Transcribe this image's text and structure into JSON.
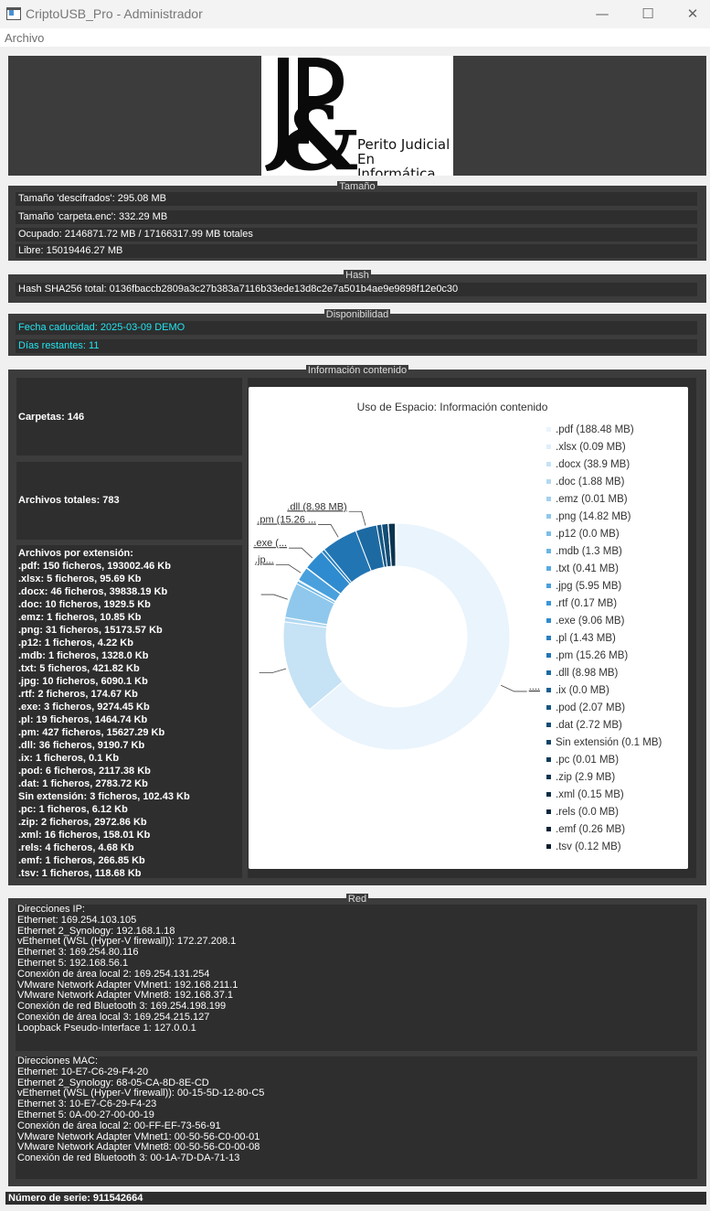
{
  "window": {
    "title": "CriptoUSB_Pro - Administrador",
    "minimize": "—",
    "maximize": "☐",
    "close": "✕"
  },
  "menu": {
    "archivo": "Archivo"
  },
  "logo": {
    "line1": "Perito Judicial",
    "line2": "En Informática"
  },
  "tamano": {
    "legend": "Tamaño",
    "descifrados": "Tamaño 'descifrados': 295.08 MB",
    "carpeta_enc": "Tamaño 'carpeta.enc': 332.29 MB",
    "ocupado": "Ocupado: 2146871.72 MB / 17166317.99 MB totales",
    "libre": "Libre: 15019446.27 MB"
  },
  "hash": {
    "legend": "Hash",
    "value": "Hash SHA256 total: 0136fbaccb2809a3c27b383a7116b33ede13d8c2e7a501b4ae9e9898f12e0c30"
  },
  "disponibilidad": {
    "legend": "Disponibilidad",
    "fecha": "Fecha caducidad: 2025-03-09 DEMO",
    "dias": "Días restantes: 11"
  },
  "info": {
    "legend": "Información contenido",
    "carpetas": "Carpetas: 146",
    "archivos": "Archivos totales: 783",
    "ext_header": "Archivos por extensión:",
    "ext_lines": [
      ".pdf: 150 ficheros, 193002.46 Kb",
      ".xlsx: 5 ficheros, 95.69 Kb",
      ".docx: 46 ficheros, 39838.19 Kb",
      ".doc: 10 ficheros, 1929.5 Kb",
      ".emz: 1 ficheros, 10.85 Kb",
      ".png: 31 ficheros, 15173.57 Kb",
      ".p12: 1 ficheros, 4.22 Kb",
      ".mdb: 1 ficheros, 1328.0 Kb",
      ".txt: 5 ficheros, 421.82 Kb",
      ".jpg: 10 ficheros, 6090.1 Kb",
      ".rtf: 2 ficheros, 174.67 Kb",
      ".exe: 3 ficheros, 9274.45 Kb",
      ".pl: 19 ficheros, 1464.74 Kb",
      ".pm: 427 ficheros, 15627.29 Kb",
      ".dll: 36 ficheros, 9190.7 Kb",
      ".ix: 1 ficheros, 0.1 Kb",
      ".pod: 6 ficheros, 2117.38 Kb",
      ".dat: 1 ficheros, 2783.72 Kb",
      "Sin extensión: 3 ficheros, 102.43 Kb",
      ".pc: 1 ficheros, 6.12 Kb",
      ".zip: 2 ficheros, 2972.86 Kb",
      ".xml: 16 ficheros, 158.01 Kb",
      ".rels: 4 ficheros, 4.68 Kb",
      ".emf: 1 ficheros, 266.85 Kb",
      ".tsv: 1 ficheros, 118.68 Kb"
    ]
  },
  "chart_data": {
    "type": "pie",
    "title": "Uso de Espacio: Información contenido",
    "donut": true,
    "legend_position": "right",
    "categories": [
      ".pdf",
      ".xlsx",
      ".docx",
      ".doc",
      ".emz",
      ".png",
      ".p12",
      ".mdb",
      ".txt",
      ".jpg",
      ".rtf",
      ".exe",
      ".pl",
      ".pm",
      ".dll",
      ".ix",
      ".pod",
      ".dat",
      "Sin extensión",
      ".pc",
      ".zip",
      ".xml",
      ".rels",
      ".emf",
      ".tsv"
    ],
    "values": [
      188.48,
      0.09,
      38.9,
      1.88,
      0.01,
      14.82,
      0.0,
      1.3,
      0.41,
      5.95,
      0.17,
      9.06,
      1.43,
      15.26,
      8.98,
      0.0,
      2.07,
      2.72,
      0.1,
      0.01,
      2.9,
      0.15,
      0.0,
      0.26,
      0.12
    ],
    "legend_labels": [
      ".pdf (188.48 MB)",
      ".xlsx (0.09 MB)",
      ".docx (38.9 MB)",
      ".doc (1.88 MB)",
      ".emz (0.01 MB)",
      ".png (14.82 MB)",
      ".p12 (0.0 MB)",
      ".mdb (1.3 MB)",
      ".txt (0.41 MB)",
      ".jpg (5.95 MB)",
      ".rtf (0.17 MB)",
      ".exe (9.06 MB)",
      ".pl (1.43 MB)",
      ".pm (15.26 MB)",
      ".dll (8.98 MB)",
      ".ix (0.0 MB)",
      ".pod (2.07 MB)",
      ".dat (2.72 MB)",
      "Sin extensión (0.1 MB)",
      ".pc (0.01 MB)",
      ".zip (2.9 MB)",
      ".xml (0.15 MB)",
      ".rels (0.0 MB)",
      ".emf (0.26 MB)",
      ".tsv (0.12 MB)"
    ],
    "colors": [
      "#eaf4fc",
      "#e0eff9",
      "#c6e2f5",
      "#b3d9f2",
      "#a3d1ef",
      "#8fc8ec",
      "#7cbee8",
      "#6bb5e5",
      "#5aaae1",
      "#49a0dd",
      "#3a96d8",
      "#2f8bcf",
      "#2880c2",
      "#2275b3",
      "#1d6aa3",
      "#196093",
      "#155684",
      "#124c75",
      "#0f4367",
      "#0d3b5b",
      "#0b3450",
      "#0a2d46",
      "#09283e",
      "#082236",
      "#071d2e"
    ],
    "slice_labels": [
      {
        "index": 0,
        "text": "...."
      },
      {
        "index": 2,
        "text": ""
      },
      {
        "index": 5,
        "text": ""
      },
      {
        "index": 9,
        "text": ".jp..."
      },
      {
        "index": 11,
        "text": ".exe (..."
      },
      {
        "index": 13,
        "text": ".pm (15.26 ..."
      },
      {
        "index": 14,
        "text": ".dll (8.98 MB)"
      }
    ]
  },
  "red": {
    "legend": "Red",
    "ip_lines": [
      "Direcciones IP:",
      "Ethernet: 169.254.103.105",
      "Ethernet 2_Synology: 192.168.1.18",
      "vEthernet (WSL (Hyper-V firewall)): 172.27.208.1",
      "Ethernet 3: 169.254.80.116",
      "Ethernet 5: 192.168.56.1",
      "Conexión de área local 2: 169.254.131.254",
      "VMware Network Adapter VMnet1: 192.168.211.1",
      "VMware Network Adapter VMnet8: 192.168.37.1",
      "Conexión de red Bluetooth 3: 169.254.198.199",
      "Conexión de área local 3: 169.254.215.127",
      "Loopback Pseudo-Interface 1: 127.0.0.1"
    ],
    "mac_lines": [
      "Direcciones MAC:",
      "Ethernet: 10-E7-C6-29-F4-20",
      "Ethernet 2_Synology: 68-05-CA-8D-8E-CD",
      "vEthernet (WSL (Hyper-V firewall)): 00-15-5D-12-80-C5",
      "Ethernet 3: 10-E7-C6-29-F4-23",
      "Ethernet 5: 0A-00-27-00-00-19",
      "Conexión de área local 2: 00-FF-EF-73-56-91",
      "VMware Network Adapter VMnet1: 00-50-56-C0-00-01",
      "VMware Network Adapter VMnet8: 00-50-56-C0-00-08",
      "Conexión de red Bluetooth 3: 00-1A-7D-DA-71-13"
    ]
  },
  "serial": "Número de serie: 911542664"
}
